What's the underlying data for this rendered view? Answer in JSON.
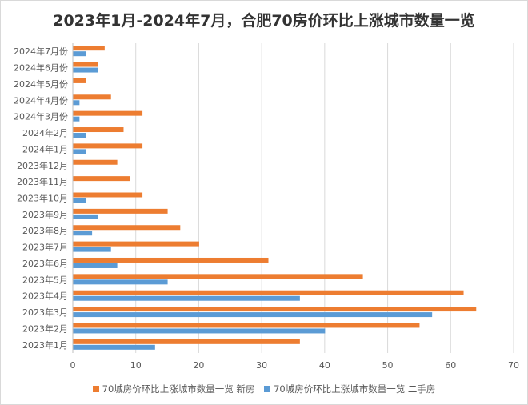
{
  "chart_data": {
    "type": "bar",
    "orientation": "horizontal",
    "title": "2023年1月-2024年7月，合肥70房价环比上涨城市数量一览",
    "categories": [
      "2024年7月份",
      "2024年6月份",
      "2024年5月份",
      "2024年4月份",
      "2024年3月份",
      "2024年2月",
      "2024年1月",
      "2023年12月",
      "2023年11月",
      "2023年10月",
      "2023年9月",
      "2023年8月",
      "2023年7月",
      "2023年6月",
      "2023年5月",
      "2023年4月",
      "2023年3月",
      "2023年2月",
      "2023年1月"
    ],
    "series": [
      {
        "name": "70城房价环比上涨城市数量一览 新房",
        "color": "#ED7D31",
        "values": [
          5,
          4,
          2,
          6,
          11,
          8,
          11,
          7,
          9,
          11,
          15,
          17,
          20,
          31,
          46,
          62,
          64,
          55,
          36
        ]
      },
      {
        "name": "70城房价环比上涨城市数量一览 二手房",
        "color": "#5B9BD5",
        "values": [
          2,
          4,
          0,
          1,
          1,
          2,
          2,
          0,
          0,
          2,
          4,
          3,
          6,
          7,
          15,
          36,
          57,
          40,
          13
        ]
      }
    ],
    "xlim": [
      0,
      70
    ],
    "xticks": [
      "0",
      "10",
      "20",
      "30",
      "40",
      "50",
      "60",
      "70"
    ],
    "grid": true,
    "legend_position": "bottom"
  }
}
